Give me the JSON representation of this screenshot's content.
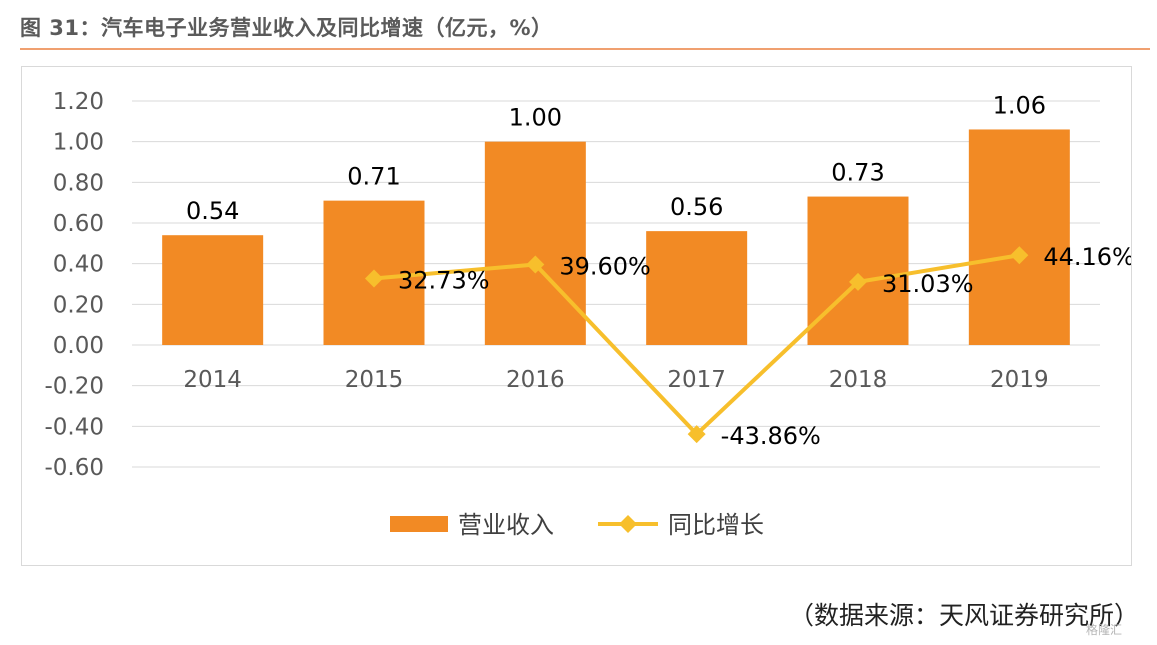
{
  "header": {
    "title": "图 31：汽车电子业务营业收入及同比增速（亿元，%）"
  },
  "chart_data": {
    "type": "bar",
    "categories": [
      "2014",
      "2015",
      "2016",
      "2017",
      "2018",
      "2019"
    ],
    "ylim": [
      -0.6,
      1.2
    ],
    "yticks": [
      "1.20",
      "1.00",
      "0.80",
      "0.60",
      "0.40",
      "0.20",
      "0.00",
      "-0.20",
      "-0.40",
      "-0.60"
    ],
    "grid": true,
    "legend_position": "bottom",
    "series": [
      {
        "name": "营业收入",
        "kind": "bar",
        "color": "#f28a24",
        "values": [
          0.54,
          0.71,
          1.0,
          0.56,
          0.73,
          1.06
        ],
        "labels": [
          "0.54",
          "0.71",
          "1.00",
          "0.56",
          "0.73",
          "1.06"
        ]
      },
      {
        "name": "同比增长",
        "kind": "line",
        "color": "#f7bf2c",
        "values": [
          null,
          32.73,
          39.6,
          -43.86,
          31.03,
          44.16
        ],
        "labels": [
          "",
          "32.73%",
          "39.60%",
          "-43.86%",
          "31.03%",
          "44.16%"
        ]
      }
    ]
  },
  "footer": {
    "source": "（数据来源：天风证券研究所）",
    "watermark": "格隆汇"
  }
}
